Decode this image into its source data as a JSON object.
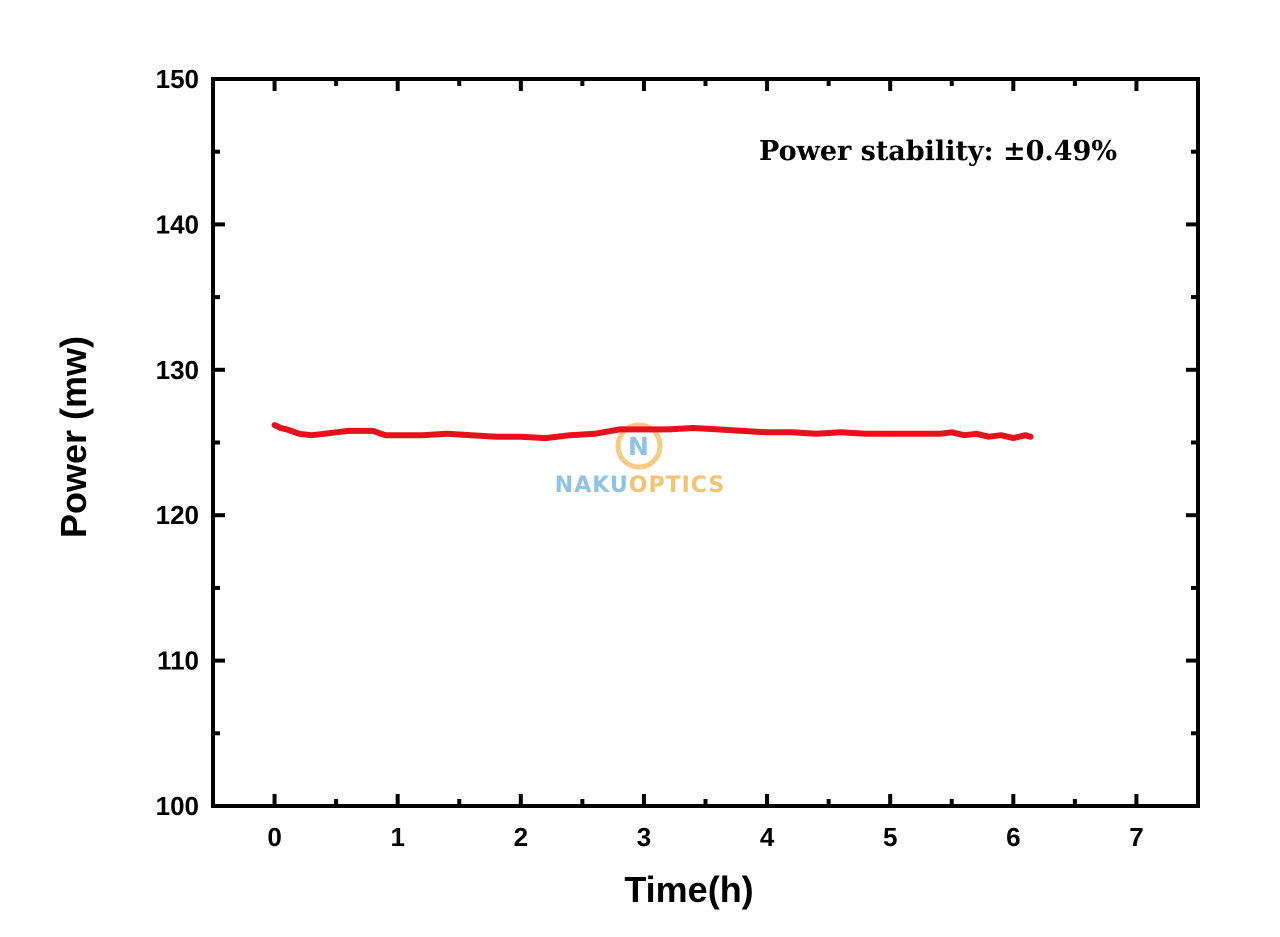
{
  "chart_data": {
    "type": "line",
    "xlabel": "Time(h)",
    "ylabel": "Power (mw)",
    "xlim": [
      -0.5,
      7.5
    ],
    "ylim": [
      100,
      150
    ],
    "x_ticks": [
      "0",
      "1",
      "2",
      "3",
      "4",
      "5",
      "6",
      "7"
    ],
    "y_ticks": [
      "100",
      "110",
      "120",
      "130",
      "140",
      "150"
    ],
    "annotation": "Power stability: ±0.49%",
    "grid": false,
    "series": [
      {
        "color": "#e8101a",
        "x": [
          0.0,
          0.05,
          0.1,
          0.2,
          0.3,
          0.4,
          0.5,
          0.6,
          0.7,
          0.8,
          0.9,
          1.0,
          1.2,
          1.4,
          1.6,
          1.8,
          2.0,
          2.2,
          2.4,
          2.6,
          2.8,
          3.0,
          3.2,
          3.4,
          3.6,
          3.8,
          4.0,
          4.2,
          4.4,
          4.6,
          4.8,
          5.0,
          5.2,
          5.4,
          5.5,
          5.6,
          5.7,
          5.8,
          5.9,
          6.0,
          6.1,
          6.14
        ],
        "y": [
          126.2,
          126.0,
          125.9,
          125.6,
          125.5,
          125.6,
          125.7,
          125.8,
          125.8,
          125.8,
          125.5,
          125.5,
          125.5,
          125.6,
          125.5,
          125.4,
          125.4,
          125.3,
          125.5,
          125.6,
          125.9,
          125.9,
          125.9,
          126.0,
          125.9,
          125.8,
          125.7,
          125.7,
          125.6,
          125.7,
          125.6,
          125.6,
          125.6,
          125.6,
          125.7,
          125.5,
          125.6,
          125.4,
          125.5,
          125.3,
          125.5,
          125.4
        ]
      }
    ]
  },
  "watermark": {
    "logo_letter": "N",
    "text_part1": "NAKU",
    "text_part2": "OPTICS",
    "color_blue": "#8ec3e6",
    "color_orange": "#f6c270"
  }
}
